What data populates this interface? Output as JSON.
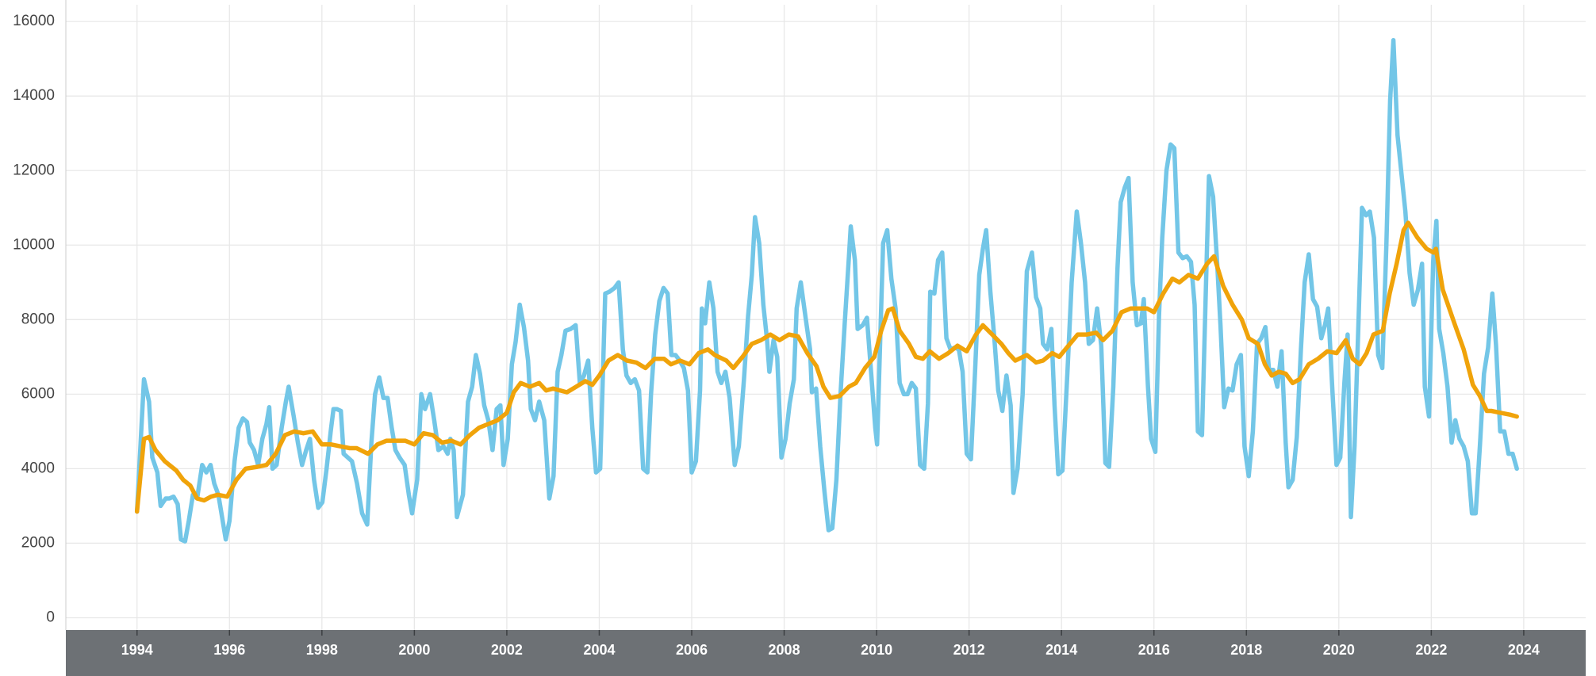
{
  "chart_data": {
    "type": "line",
    "xlim": [
      1992.46,
      2025.34
    ],
    "xticks": [
      1994,
      1996,
      1998,
      2000,
      2002,
      2004,
      2006,
      2008,
      2010,
      2012,
      2014,
      2016,
      2018,
      2020,
      2022,
      2024
    ],
    "ylim": [
      -330,
      16450
    ],
    "yticks": [
      0,
      2000,
      4000,
      6000,
      8000,
      10000,
      12000,
      14000,
      16000
    ],
    "grid": true,
    "series": [
      {
        "color": "#73c6e7",
        "x": [
          1994.0,
          1994.15,
          1994.26,
          1994.33,
          1994.44,
          1994.51,
          1994.62,
          1994.7,
          1994.79,
          1994.88,
          1994.95,
          1995.04,
          1995.12,
          1995.21,
          1995.3,
          1995.41,
          1995.5,
          1995.59,
          1995.67,
          1995.76,
          1995.92,
          1996.0,
          1996.11,
          1996.2,
          1996.29,
          1996.38,
          1996.44,
          1996.53,
          1996.62,
          1996.71,
          1996.8,
          1996.86,
          1996.93,
          1997.02,
          1997.13,
          1997.22,
          1997.28,
          1997.39,
          1997.48,
          1997.57,
          1997.66,
          1997.74,
          1997.83,
          1997.92,
          1998.01,
          1998.1,
          1998.19,
          1998.25,
          1998.32,
          1998.41,
          1998.47,
          1998.56,
          1998.65,
          1998.76,
          1998.87,
          1998.98,
          1999.07,
          1999.15,
          1999.24,
          1999.33,
          1999.42,
          1999.51,
          1999.59,
          1999.68,
          1999.79,
          1999.88,
          1999.95,
          2000.06,
          2000.15,
          2000.23,
          2000.34,
          2000.43,
          2000.52,
          2000.63,
          2000.72,
          2000.78,
          2000.85,
          2000.92,
          2001.05,
          2001.16,
          2001.25,
          2001.33,
          2001.42,
          2001.51,
          2001.6,
          2001.69,
          2001.78,
          2001.86,
          2001.93,
          2002.02,
          2002.11,
          2002.19,
          2002.28,
          2002.37,
          2002.46,
          2002.52,
          2002.61,
          2002.7,
          2002.81,
          2002.92,
          2003.01,
          2003.1,
          2003.18,
          2003.27,
          2003.38,
          2003.49,
          2003.58,
          2003.67,
          2003.76,
          2003.85,
          2003.93,
          2004.02,
          2004.13,
          2004.22,
          2004.33,
          2004.42,
          2004.51,
          2004.59,
          2004.68,
          2004.77,
          2004.86,
          2004.95,
          2005.04,
          2005.12,
          2005.21,
          2005.3,
          2005.39,
          2005.48,
          2005.56,
          2005.65,
          2005.74,
          2005.83,
          2005.92,
          2006.0,
          2006.09,
          2006.18,
          2006.22,
          2006.29,
          2006.38,
          2006.47,
          2006.56,
          2006.64,
          2006.73,
          2006.82,
          2006.93,
          2007.02,
          2007.13,
          2007.22,
          2007.3,
          2007.37,
          2007.46,
          2007.55,
          2007.63,
          2007.68,
          2007.77,
          2007.85,
          2007.94,
          2008.03,
          2008.12,
          2008.21,
          2008.27,
          2008.36,
          2008.47,
          2008.56,
          2008.6,
          2008.69,
          2008.78,
          2008.87,
          2008.96,
          2009.04,
          2009.13,
          2009.22,
          2009.31,
          2009.4,
          2009.44,
          2009.53,
          2009.59,
          2009.7,
          2009.79,
          2009.88,
          2009.97,
          2010.01,
          2010.14,
          2010.23,
          2010.32,
          2010.41,
          2010.5,
          2010.59,
          2010.67,
          2010.76,
          2010.85,
          2010.94,
          2011.03,
          2011.11,
          2011.16,
          2011.25,
          2011.33,
          2011.42,
          2011.51,
          2011.6,
          2011.69,
          2011.78,
          2011.86,
          2011.95,
          2012.04,
          2012.13,
          2012.22,
          2012.3,
          2012.37,
          2012.46,
          2012.55,
          2012.63,
          2012.72,
          2012.81,
          2012.9,
          2012.96,
          2013.05,
          2013.16,
          2013.25,
          2013.36,
          2013.45,
          2013.54,
          2013.6,
          2013.69,
          2013.78,
          2013.85,
          2013.93,
          2014.02,
          2014.13,
          2014.22,
          2014.33,
          2014.42,
          2014.51,
          2014.59,
          2014.68,
          2014.77,
          2014.86,
          2014.95,
          2015.03,
          2015.12,
          2015.21,
          2015.28,
          2015.37,
          2015.45,
          2015.54,
          2015.63,
          2015.72,
          2015.78,
          2015.87,
          2015.94,
          2016.03,
          2016.11,
          2016.18,
          2016.27,
          2016.36,
          2016.44,
          2016.53,
          2016.62,
          2016.71,
          2016.8,
          2016.88,
          2016.95,
          2017.04,
          2017.13,
          2017.19,
          2017.28,
          2017.37,
          2017.44,
          2017.52,
          2017.61,
          2017.7,
          2017.79,
          2017.88,
          2017.96,
          2018.05,
          2018.14,
          2018.23,
          2018.32,
          2018.41,
          2018.49,
          2018.58,
          2018.67,
          2018.76,
          2018.85,
          2018.91,
          2019.0,
          2019.09,
          2019.18,
          2019.26,
          2019.35,
          2019.44,
          2019.53,
          2019.62,
          2019.7,
          2019.77,
          2019.86,
          2019.95,
          2020.03,
          2020.12,
          2020.19,
          2020.26,
          2020.34,
          2020.43,
          2020.5,
          2020.59,
          2020.67,
          2020.76,
          2020.85,
          2020.94,
          2021.03,
          2021.11,
          2021.18,
          2021.27,
          2021.36,
          2021.44,
          2021.53,
          2021.62,
          2021.71,
          2021.8,
          2021.86,
          2021.95,
          2022.04,
          2022.11,
          2022.17,
          2022.26,
          2022.35,
          2022.44,
          2022.52,
          2022.61,
          2022.7,
          2022.79,
          2022.88,
          2022.96,
          2023.05,
          2023.14,
          2023.23,
          2023.32,
          2023.4,
          2023.49,
          2023.58,
          2023.67,
          2023.76,
          2023.85
        ],
        "values": [
          2850,
          6400,
          5800,
          4300,
          3900,
          3000,
          3200,
          3200,
          3250,
          3050,
          2100,
          2050,
          2600,
          3300,
          3200,
          4100,
          3900,
          4100,
          3600,
          3300,
          2100,
          2600,
          4200,
          5100,
          5350,
          5250,
          4700,
          4500,
          4100,
          4800,
          5200,
          5650,
          4000,
          4100,
          5100,
          5800,
          6200,
          5400,
          4700,
          4100,
          4500,
          4800,
          3700,
          2950,
          3100,
          4000,
          5000,
          5600,
          5600,
          5550,
          4400,
          4300,
          4200,
          3600,
          2800,
          2500,
          4700,
          6000,
          6450,
          5900,
          5900,
          5100,
          4500,
          4300,
          4100,
          3300,
          2800,
          3700,
          6000,
          5600,
          6000,
          5300,
          4500,
          4600,
          4400,
          4800,
          4500,
          2700,
          3300,
          5800,
          6200,
          7050,
          6550,
          5700,
          5300,
          4500,
          5600,
          5700,
          4100,
          4800,
          6800,
          7400,
          8400,
          7800,
          6900,
          5600,
          5300,
          5800,
          5300,
          3200,
          3800,
          6600,
          7050,
          7700,
          7750,
          7850,
          6300,
          6500,
          6900,
          5100,
          3900,
          4000,
          8700,
          8750,
          8850,
          9000,
          7200,
          6500,
          6300,
          6400,
          6100,
          4000,
          3900,
          6000,
          7600,
          8500,
          8850,
          8700,
          7050,
          7050,
          6900,
          6700,
          6100,
          3900,
          4200,
          6100,
          8300,
          7900,
          9000,
          8300,
          6600,
          6300,
          6600,
          5900,
          4100,
          4600,
          6400,
          8100,
          9200,
          10750,
          10050,
          8400,
          7450,
          6600,
          7450,
          7000,
          4300,
          4800,
          5750,
          6400,
          8300,
          9000,
          8000,
          7200,
          6050,
          6150,
          4600,
          3400,
          2350,
          2400,
          3700,
          6000,
          7900,
          9650,
          10500,
          9600,
          7750,
          7850,
          8050,
          6600,
          5100,
          4650,
          10050,
          10400,
          9100,
          8300,
          6300,
          6000,
          6000,
          6300,
          6150,
          4100,
          4000,
          5750,
          8750,
          8700,
          9600,
          9800,
          7500,
          7200,
          7250,
          7200,
          6600,
          4400,
          4250,
          6600,
          9200,
          9900,
          10400,
          8750,
          7450,
          6100,
          5550,
          6500,
          5700,
          3350,
          4000,
          6000,
          9300,
          9800,
          8600,
          8300,
          7350,
          7200,
          7750,
          5700,
          3850,
          3950,
          6650,
          9000,
          10900,
          10050,
          9000,
          7350,
          7450,
          8300,
          7300,
          4150,
          4050,
          6200,
          9350,
          11150,
          11550,
          11800,
          9000,
          7850,
          7900,
          8550,
          6200,
          4800,
          4450,
          8100,
          10200,
          12000,
          12700,
          12600,
          9800,
          9650,
          9700,
          9550,
          8400,
          5000,
          4900,
          9150,
          11850,
          11300,
          9450,
          7850,
          5650,
          6150,
          6100,
          6800,
          7050,
          4600,
          3800,
          5000,
          7350,
          7500,
          7800,
          6650,
          6650,
          6200,
          7150,
          4700,
          3500,
          3700,
          4850,
          7200,
          9000,
          9750,
          8550,
          8350,
          7500,
          7850,
          8300,
          6100,
          4100,
          4300,
          6300,
          7600,
          2700,
          4600,
          8150,
          11000,
          10800,
          10900,
          10200,
          7050,
          6700,
          10050,
          13900,
          15500,
          12950,
          11850,
          10900,
          9250,
          8400,
          8800,
          9500,
          6200,
          5400,
          9550,
          10650,
          7750,
          7100,
          6200,
          4700,
          5300,
          4800,
          4600,
          4200,
          2800,
          2800,
          4600,
          6550,
          7250,
          8700,
          7300,
          5000,
          5000,
          4400,
          4400,
          4000
        ]
      },
      {
        "color": "#f0a30a",
        "x": [
          1994.0,
          1994.15,
          1994.26,
          1994.4,
          1994.6,
          1994.85,
          1995.0,
          1995.15,
          1995.3,
          1995.45,
          1995.6,
          1995.75,
          1995.95,
          1996.15,
          1996.35,
          1996.6,
          1996.8,
          1997.0,
          1997.2,
          1997.4,
          1997.6,
          1997.8,
          1998.0,
          1998.2,
          1998.4,
          1998.6,
          1998.75,
          1999.0,
          1999.2,
          1999.4,
          1999.6,
          1999.8,
          2000.0,
          2000.2,
          2000.4,
          2000.6,
          2000.8,
          2001.0,
          2001.2,
          2001.4,
          2001.6,
          2001.8,
          2002.0,
          2002.15,
          2002.3,
          2002.5,
          2002.7,
          2002.85,
          2003.0,
          2003.3,
          2003.5,
          2003.7,
          2003.85,
          2004.0,
          2004.2,
          2004.4,
          2004.6,
          2004.8,
          2005.0,
          2005.2,
          2005.4,
          2005.55,
          2005.75,
          2005.95,
          2006.15,
          2006.35,
          2006.5,
          2006.75,
          2006.9,
          2007.1,
          2007.3,
          2007.5,
          2007.7,
          2007.9,
          2008.1,
          2008.3,
          2008.5,
          2008.7,
          2008.85,
          2009.0,
          2009.2,
          2009.4,
          2009.55,
          2009.75,
          2009.95,
          2010.1,
          2010.25,
          2010.35,
          2010.5,
          2010.7,
          2010.85,
          2011.0,
          2011.15,
          2011.35,
          2011.55,
          2011.75,
          2011.95,
          2012.15,
          2012.3,
          2012.5,
          2012.7,
          2012.85,
          2013.0,
          2013.25,
          2013.45,
          2013.6,
          2013.8,
          2013.95,
          2014.15,
          2014.35,
          2014.55,
          2014.75,
          2014.9,
          2015.1,
          2015.3,
          2015.5,
          2015.7,
          2015.85,
          2016.0,
          2016.2,
          2016.4,
          2016.55,
          2016.75,
          2016.95,
          2017.15,
          2017.3,
          2017.5,
          2017.7,
          2017.9,
          2018.05,
          2018.25,
          2018.4,
          2018.55,
          2018.7,
          2018.85,
          2019.0,
          2019.15,
          2019.35,
          2019.55,
          2019.75,
          2019.95,
          2020.15,
          2020.3,
          2020.45,
          2020.6,
          2020.75,
          2020.95,
          2021.1,
          2021.25,
          2021.4,
          2021.5,
          2021.7,
          2021.9,
          2022.05,
          2022.1,
          2022.25,
          2022.5,
          2022.7,
          2022.9,
          2023.05,
          2023.2,
          2023.3,
          2023.5,
          2023.7,
          2023.85
        ],
        "values": [
          2850,
          4800,
          4850,
          4500,
          4200,
          3950,
          3700,
          3550,
          3200,
          3150,
          3250,
          3300,
          3250,
          3700,
          4000,
          4050,
          4100,
          4400,
          4900,
          5000,
          4950,
          5000,
          4650,
          4650,
          4600,
          4550,
          4550,
          4400,
          4650,
          4750,
          4750,
          4750,
          4650,
          4950,
          4900,
          4700,
          4750,
          4650,
          4900,
          5100,
          5200,
          5300,
          5500,
          6050,
          6300,
          6200,
          6300,
          6100,
          6150,
          6050,
          6200,
          6350,
          6250,
          6500,
          6900,
          7050,
          6900,
          6850,
          6700,
          6950,
          6950,
          6800,
          6900,
          6800,
          7100,
          7200,
          7050,
          6900,
          6700,
          7000,
          7350,
          7450,
          7600,
          7450,
          7600,
          7550,
          7100,
          6750,
          6200,
          5900,
          5950,
          6200,
          6300,
          6700,
          7000,
          7700,
          8250,
          8300,
          7700,
          7350,
          7000,
          6950,
          7150,
          6950,
          7100,
          7300,
          7150,
          7600,
          7850,
          7600,
          7350,
          7100,
          6900,
          7050,
          6850,
          6900,
          7100,
          7000,
          7300,
          7600,
          7600,
          7650,
          7450,
          7700,
          8200,
          8300,
          8300,
          8300,
          8200,
          8700,
          9100,
          9000,
          9200,
          9100,
          9500,
          9700,
          8900,
          8400,
          8000,
          7500,
          7350,
          6800,
          6500,
          6600,
          6550,
          6300,
          6400,
          6800,
          6950,
          7150,
          7100,
          7450,
          6950,
          6800,
          7100,
          7600,
          7700,
          8700,
          9500,
          10400,
          10600,
          10200,
          9900,
          9800,
          9900,
          8800,
          7900,
          7200,
          6250,
          5950,
          5550,
          5550,
          5500,
          5450,
          5400
        ]
      }
    ]
  }
}
